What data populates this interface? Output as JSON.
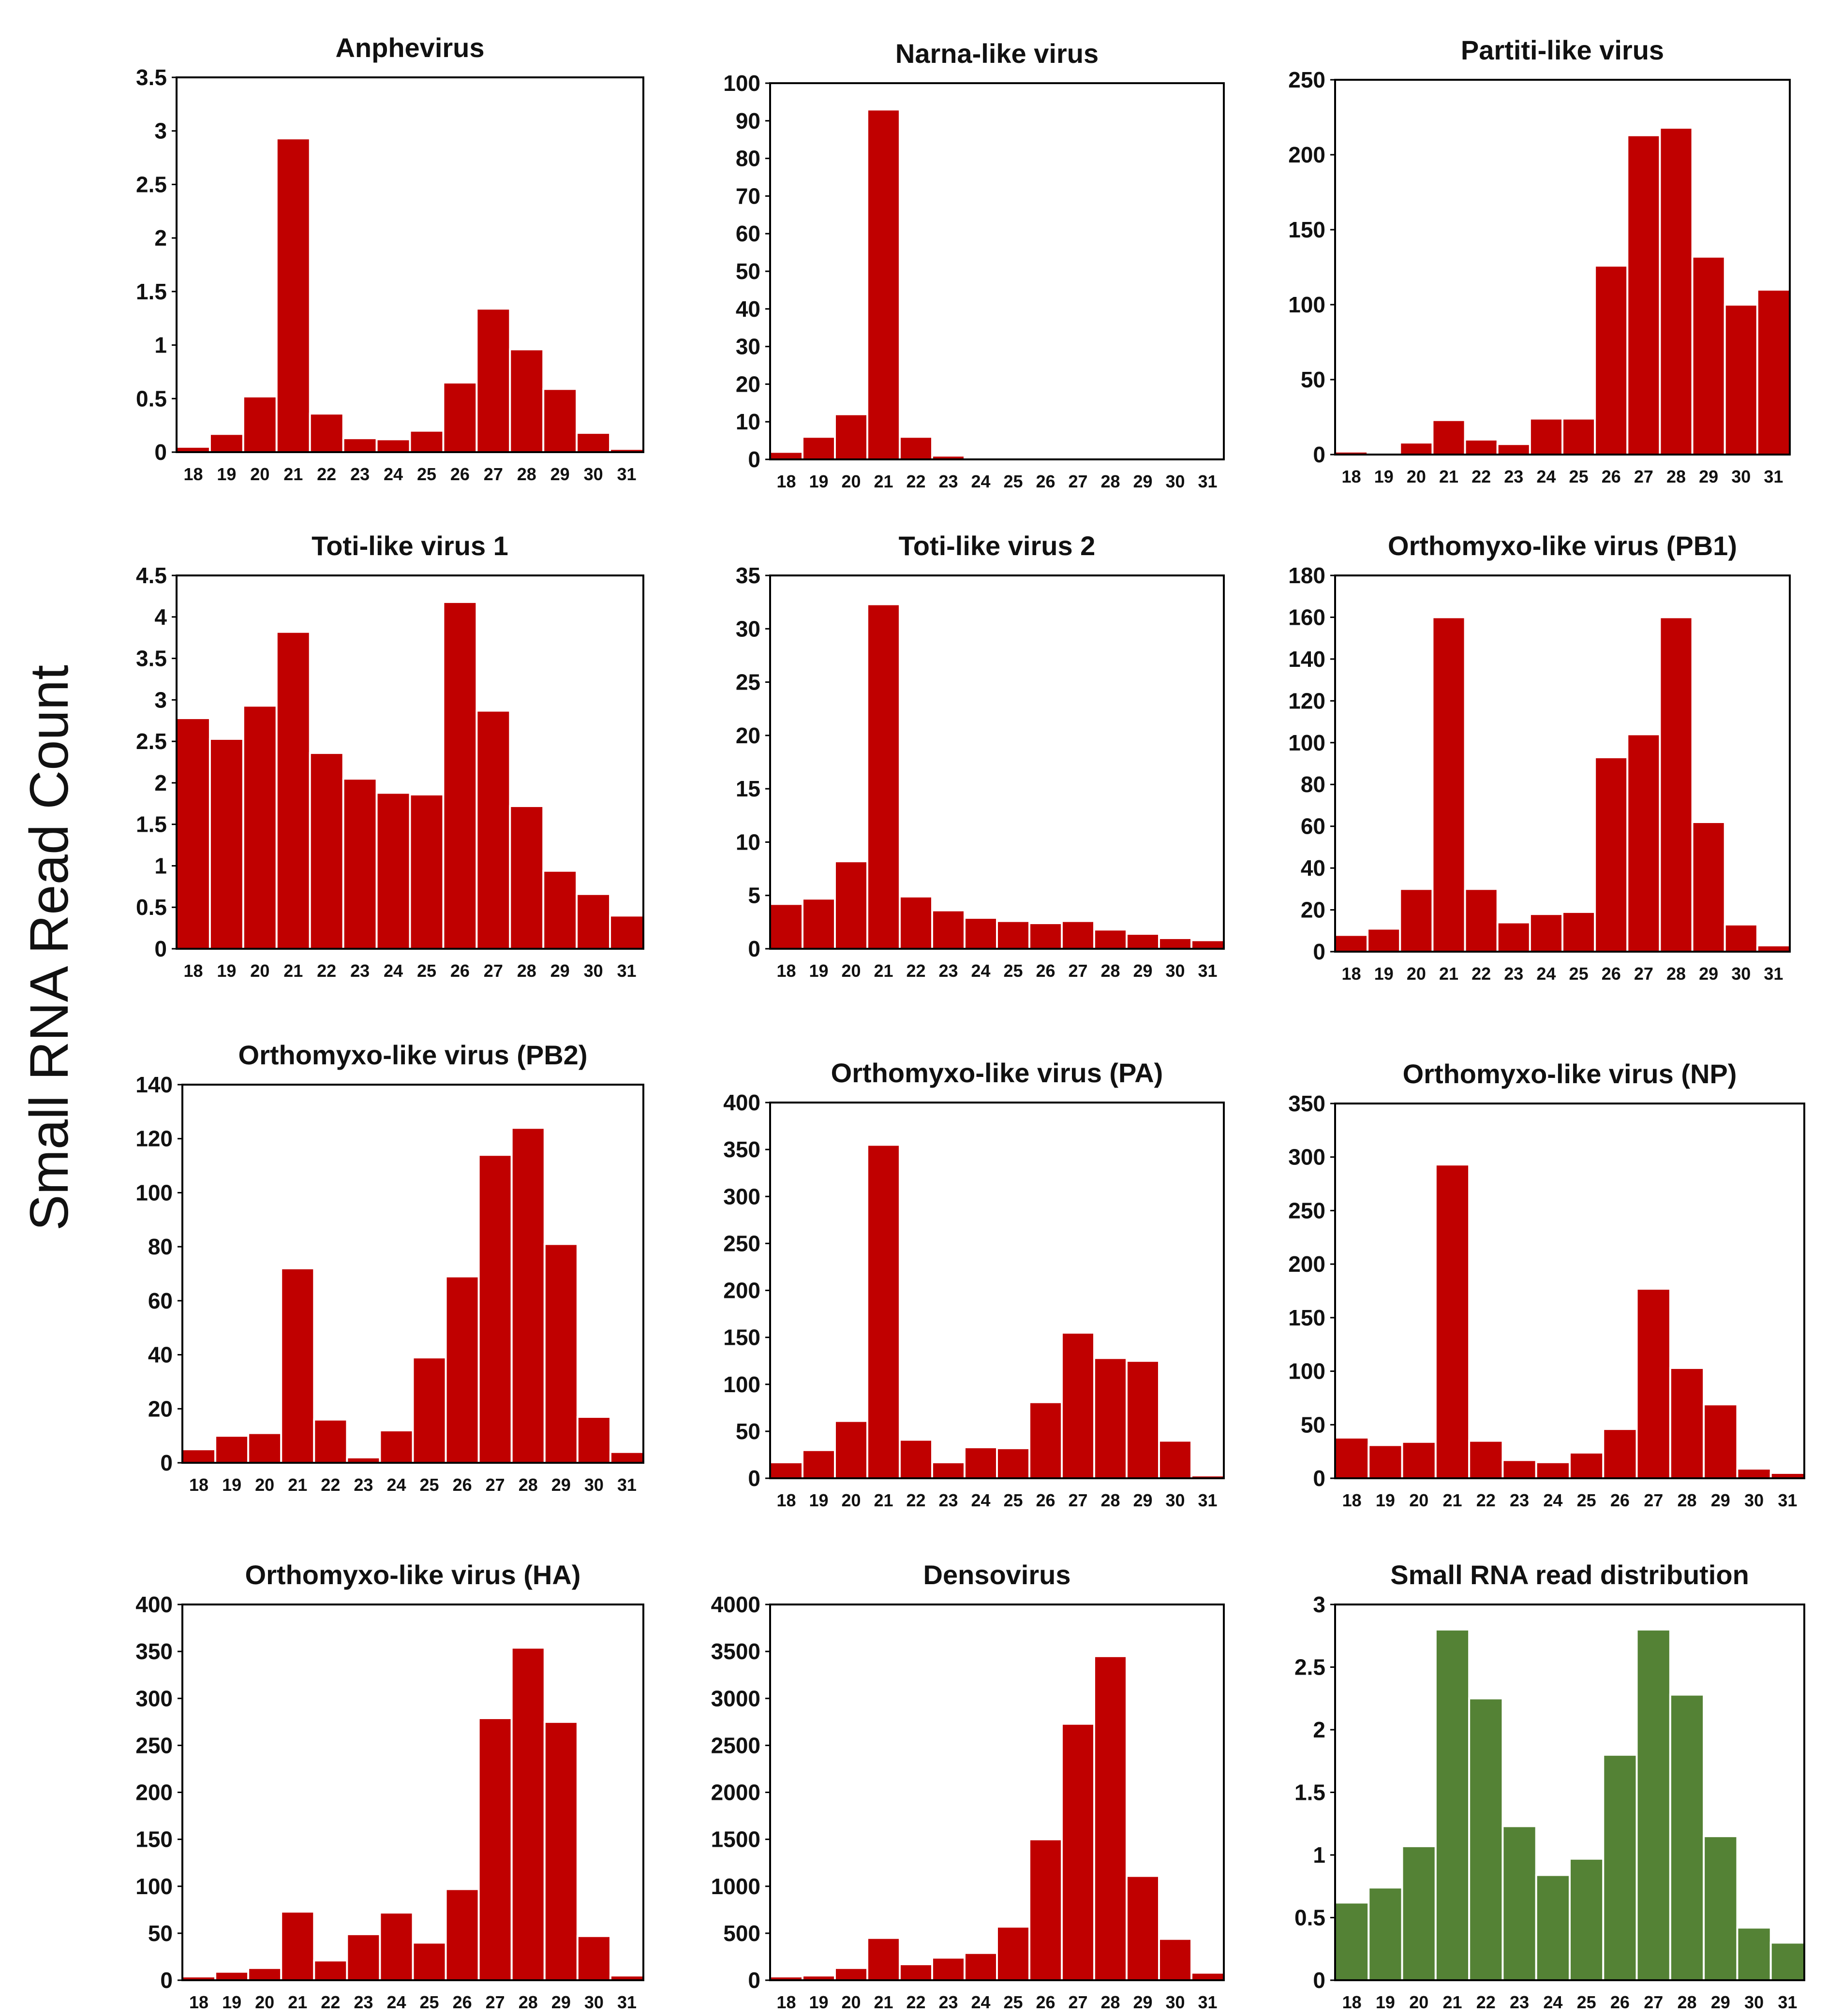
{
  "figure": {
    "ylabel": "Small RNA Read Count"
  },
  "colors": {
    "red_bar": "#c00000",
    "green_bar": "#548235",
    "bar_edge": "#ffffff",
    "frame": "#000000"
  },
  "chart_data": [
    {
      "type": "bar",
      "title": "Anphevirus",
      "categories": [
        "18",
        "19",
        "20",
        "21",
        "22",
        "23",
        "24",
        "25",
        "26",
        "27",
        "28",
        "29",
        "30",
        "31"
      ],
      "values": [
        0.05,
        0.17,
        0.52,
        2.93,
        0.36,
        0.13,
        0.12,
        0.2,
        0.65,
        1.34,
        0.96,
        0.59,
        0.18,
        0.03
      ],
      "ylim": [
        0,
        3.5
      ],
      "yticks": [
        "0",
        "0.5",
        "1",
        "1.5",
        "2",
        "2.5",
        "3",
        "3.5"
      ],
      "color": "#c00000"
    },
    {
      "type": "bar",
      "title": "Narna-like virus",
      "categories": [
        "18",
        "19",
        "20",
        "21",
        "22",
        "23",
        "24",
        "25",
        "26",
        "27",
        "28",
        "29",
        "30",
        "31"
      ],
      "values": [
        2,
        6,
        12,
        93,
        6,
        1,
        0,
        0,
        0,
        0,
        0,
        0,
        0,
        0
      ],
      "ylim": [
        0,
        100
      ],
      "yticks": [
        "0",
        "10",
        "20",
        "30",
        "40",
        "50",
        "60",
        "70",
        "80",
        "90",
        "100"
      ],
      "color": "#c00000"
    },
    {
      "type": "bar",
      "title": "Partiti-like virus",
      "categories": [
        "18",
        "19",
        "20",
        "21",
        "22",
        "23",
        "24",
        "25",
        "26",
        "27",
        "28",
        "29",
        "30",
        "31"
      ],
      "values": [
        2,
        0,
        8,
        23,
        10,
        7,
        24,
        24,
        126,
        213,
        218,
        132,
        100,
        110
      ],
      "ylim": [
        0,
        250
      ],
      "yticks": [
        "0",
        "50",
        "100",
        "150",
        "200",
        "250"
      ],
      "color": "#c00000"
    },
    {
      "type": "bar",
      "title": "Toti-like virus 1",
      "categories": [
        "18",
        "19",
        "20",
        "21",
        "22",
        "23",
        "24",
        "25",
        "26",
        "27",
        "28",
        "29",
        "30",
        "31"
      ],
      "values": [
        2.78,
        2.53,
        2.93,
        3.82,
        2.36,
        2.05,
        1.88,
        1.86,
        4.18,
        2.87,
        1.72,
        0.94,
        0.66,
        0.4
      ],
      "ylim": [
        0,
        4.5
      ],
      "yticks": [
        "0",
        "0.5",
        "1",
        "1.5",
        "2",
        "2.5",
        "3",
        "3.5",
        "4",
        "4.5"
      ],
      "color": "#c00000"
    },
    {
      "type": "bar",
      "title": "Toti-like virus 2",
      "categories": [
        "18",
        "19",
        "20",
        "21",
        "22",
        "23",
        "24",
        "25",
        "26",
        "27",
        "28",
        "29",
        "30",
        "31"
      ],
      "values": [
        4.2,
        4.7,
        8.2,
        32.3,
        4.9,
        3.6,
        2.9,
        2.6,
        2.4,
        2.6,
        1.8,
        1.4,
        1.0,
        0.8
      ],
      "ylim": [
        0,
        35
      ],
      "yticks": [
        "0",
        "5",
        "10",
        "15",
        "20",
        "25",
        "30",
        "35"
      ],
      "color": "#c00000"
    },
    {
      "type": "bar",
      "title": "Orthomyxo-like virus (PB1)",
      "categories": [
        "18",
        "19",
        "20",
        "21",
        "22",
        "23",
        "24",
        "25",
        "26",
        "27",
        "28",
        "29",
        "30",
        "31"
      ],
      "values": [
        8,
        11,
        30,
        160,
        30,
        14,
        18,
        19,
        93,
        104,
        160,
        62,
        13,
        3
      ],
      "ylim": [
        0,
        180
      ],
      "yticks": [
        "0",
        "20",
        "40",
        "60",
        "80",
        "100",
        "120",
        "140",
        "160",
        "180"
      ],
      "color": "#c00000"
    },
    {
      "type": "bar",
      "title": "Orthomyxo-like virus (PB2)",
      "categories": [
        "18",
        "19",
        "20",
        "21",
        "22",
        "23",
        "24",
        "25",
        "26",
        "27",
        "28",
        "29",
        "30",
        "31"
      ],
      "values": [
        5,
        10,
        11,
        72,
        16,
        2,
        12,
        39,
        69,
        114,
        124,
        81,
        17,
        4
      ],
      "ylim": [
        0,
        140
      ],
      "yticks": [
        "0",
        "20",
        "40",
        "60",
        "80",
        "100",
        "120",
        "140"
      ],
      "color": "#c00000"
    },
    {
      "type": "bar",
      "title": "Orthomyxo-like virus (PA)",
      "categories": [
        "18",
        "19",
        "20",
        "21",
        "22",
        "23",
        "24",
        "25",
        "26",
        "27",
        "28",
        "29",
        "30",
        "31"
      ],
      "values": [
        17,
        30,
        61,
        355,
        41,
        17,
        33,
        32,
        81,
        155,
        128,
        125,
        40,
        3
      ],
      "ylim": [
        0,
        400
      ],
      "yticks": [
        "0",
        "50",
        "100",
        "150",
        "200",
        "250",
        "300",
        "350",
        "400"
      ],
      "color": "#c00000"
    },
    {
      "type": "bar",
      "title": "Orthomyxo-like virus (NP)",
      "categories": [
        "18",
        "19",
        "20",
        "21",
        "22",
        "23",
        "24",
        "25",
        "26",
        "27",
        "28",
        "29",
        "30",
        "31"
      ],
      "values": [
        38,
        31,
        34,
        293,
        35,
        17,
        15,
        24,
        46,
        177,
        103,
        69,
        9,
        5
      ],
      "ylim": [
        0,
        350
      ],
      "yticks": [
        "0",
        "50",
        "100",
        "150",
        "200",
        "250",
        "300",
        "350"
      ],
      "color": "#c00000"
    },
    {
      "type": "bar",
      "title": "Orthomyxo-like virus (HA)",
      "categories": [
        "18",
        "19",
        "20",
        "21",
        "22",
        "23",
        "24",
        "25",
        "26",
        "27",
        "28",
        "29",
        "30",
        "31"
      ],
      "values": [
        4,
        9,
        13,
        73,
        21,
        49,
        72,
        40,
        97,
        279,
        354,
        275,
        47,
        5
      ],
      "ylim": [
        0,
        400
      ],
      "yticks": [
        "0",
        "50",
        "100",
        "150",
        "200",
        "250",
        "300",
        "350",
        "400"
      ],
      "color": "#c00000"
    },
    {
      "type": "bar",
      "title": "Densovirus",
      "categories": [
        "18",
        "19",
        "20",
        "21",
        "22",
        "23",
        "24",
        "25",
        "26",
        "27",
        "28",
        "29",
        "30",
        "31"
      ],
      "values": [
        40,
        50,
        130,
        450,
        170,
        240,
        290,
        570,
        1500,
        2730,
        3450,
        1110,
        440,
        80
      ],
      "ylim": [
        0,
        4000
      ],
      "yticks": [
        "0",
        "500",
        "1000",
        "1500",
        "2000",
        "2500",
        "3000",
        "3500",
        "4000"
      ],
      "color": "#c00000"
    },
    {
      "type": "bar",
      "title": "Small RNA read distribution",
      "categories": [
        "18",
        "19",
        "20",
        "21",
        "22",
        "23",
        "24",
        "25",
        "26",
        "27",
        "28",
        "29",
        "30",
        "31"
      ],
      "values": [
        0.62,
        0.74,
        1.07,
        2.8,
        2.25,
        1.23,
        0.84,
        0.97,
        1.8,
        2.8,
        2.28,
        1.15,
        0.42,
        0.3
      ],
      "ylim": [
        0,
        3
      ],
      "yticks": [
        "0",
        "0.5",
        "1",
        "1.5",
        "2",
        "2.5",
        "3"
      ],
      "color": "#548235"
    }
  ]
}
